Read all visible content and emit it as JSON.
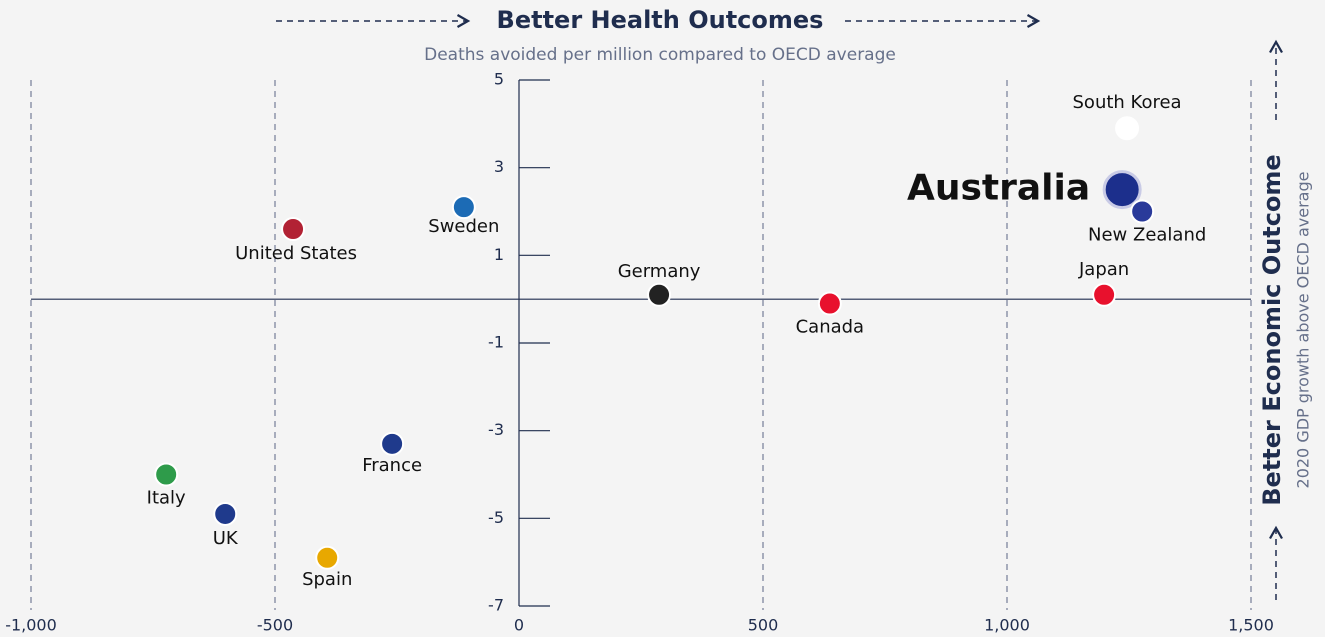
{
  "chart_data": {
    "type": "scatter",
    "title": "Better Health Outcomes",
    "subtitle": "Deaths avoided per million compared to OECD average",
    "y_label": "Better Economic Outcome",
    "y_sublabel": "2020 GDP growth above OECD average",
    "xlim": [
      -1000,
      1500
    ],
    "xticks": [
      {
        "value": -1000,
        "label": "-1,000"
      },
      -500,
      0,
      500,
      {
        "value": 1000,
        "label": "1,000"
      },
      {
        "value": 1500,
        "label": "1,500"
      }
    ],
    "ylim": [
      -7,
      5
    ],
    "yticks": [
      5,
      3,
      1,
      -1,
      -3,
      -5,
      -7
    ],
    "points": [
      {
        "label": "South Korea",
        "x": 1246,
        "y": 3.9,
        "color": "#ffffff"
      },
      {
        "label": "Australia",
        "x": 1236,
        "y": 2.5,
        "color": "#1c2f8c",
        "highlight": true
      },
      {
        "label": "New Zealand",
        "x": 1277,
        "y": 2.0,
        "color": "#2a3a9a"
      },
      {
        "label": "Japan",
        "x": 1199,
        "y": 0.1,
        "color": "#e8112d"
      },
      {
        "label": "Canada",
        "x": 637,
        "y": -0.1,
        "color": "#e8112d"
      },
      {
        "label": "Germany",
        "x": 287,
        "y": 0.1,
        "color": "#222222"
      },
      {
        "label": "Sweden",
        "x": -113,
        "y": 2.1,
        "color": "#1c6bb5"
      },
      {
        "label": "United States",
        "x": -463,
        "y": 1.6,
        "color": "#b22234"
      },
      {
        "label": "France",
        "x": -260,
        "y": -3.3,
        "color": "#1f3a8c"
      },
      {
        "label": "Italy",
        "x": -723,
        "y": -4.0,
        "color": "#2e9b4a"
      },
      {
        "label": "UK",
        "x": -602,
        "y": -4.9,
        "color": "#1f3a8c"
      },
      {
        "label": "Spain",
        "x": -393,
        "y": -5.9,
        "color": "#e8a800"
      }
    ]
  }
}
